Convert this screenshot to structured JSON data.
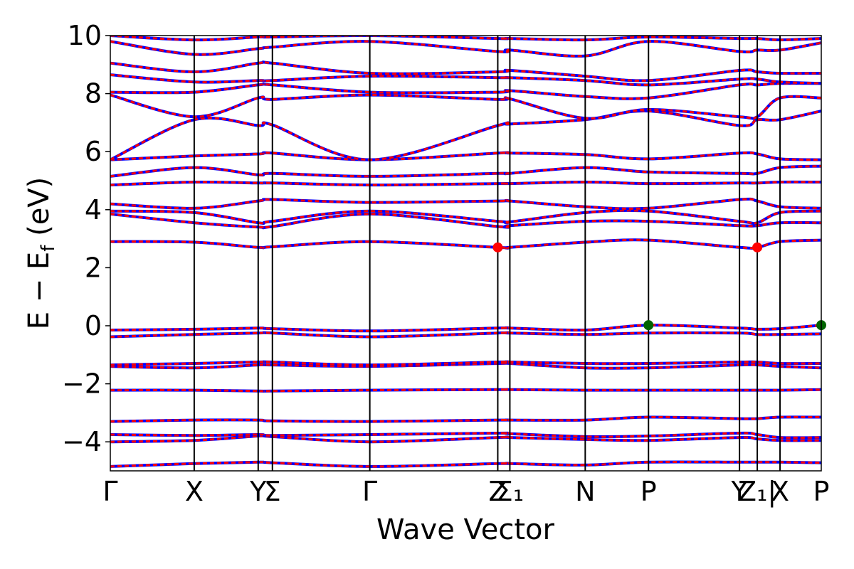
{
  "chart_data": {
    "type": "line",
    "title": "",
    "xlabel": "Wave Vector",
    "ylabel_parts": {
      "main": "E − E",
      "sub": "f",
      "unit": " (eV)"
    },
    "ylim": [
      -5,
      10
    ],
    "y_ticks": [
      {
        "value": -4,
        "label": "−4"
      },
      {
        "value": -2,
        "label": "−2"
      },
      {
        "value": 0,
        "label": "0"
      },
      {
        "value": 2,
        "label": "2"
      },
      {
        "value": 4,
        "label": "4"
      },
      {
        "value": 6,
        "label": "6"
      },
      {
        "value": 8,
        "label": "8"
      },
      {
        "value": 10,
        "label": "10"
      }
    ],
    "x_range": [
      0,
      1000
    ],
    "k_points": [
      {
        "x": 0,
        "label": "Γ"
      },
      {
        "x": 118,
        "label": "X"
      },
      {
        "x": 208,
        "label": "Y"
      },
      {
        "x": 228,
        "label": "Σ"
      },
      {
        "x": 365,
        "label": "Γ"
      },
      {
        "x": 545,
        "label": "Z"
      },
      {
        "x": 562,
        "label": "Σ₁"
      },
      {
        "x": 668,
        "label": "N"
      },
      {
        "x": 757,
        "label": "P"
      },
      {
        "x": 885,
        "label": "Y"
      },
      {
        "x": 910,
        "label": "Z₁|"
      },
      {
        "x": 942,
        "label": "X"
      },
      {
        "x": 1000,
        "label": "P"
      }
    ],
    "series_styles": {
      "spin_up_color": "#0000ff",
      "spin_down_color": "#ff0000"
    },
    "bands": [
      {
        "x": [
          0,
          118,
          208,
          228,
          365,
          545,
          562,
          668,
          757,
          885,
          910,
          942,
          1000
        ],
        "y": [
          -4.85,
          -4.75,
          -4.7,
          -4.72,
          -4.85,
          -4.75,
          -4.75,
          -4.8,
          -4.7,
          -4.7,
          -4.7,
          -4.7,
          -4.72
        ]
      },
      {
        "x": [
          0,
          118,
          208,
          228,
          365,
          545,
          562,
          668,
          757,
          885,
          910,
          942,
          1000
        ],
        "y": [
          -4.0,
          -3.95,
          -3.8,
          -3.82,
          -4.0,
          -3.85,
          -3.85,
          -3.92,
          -3.95,
          -3.85,
          -3.9,
          -3.95,
          -3.95
        ]
      },
      {
        "x": [
          0,
          118,
          208,
          228,
          365,
          545,
          562,
          668,
          757,
          885,
          910,
          942,
          1000
        ],
        "y": [
          -3.75,
          -3.78,
          -3.75,
          -3.78,
          -3.75,
          -3.7,
          -3.72,
          -3.82,
          -3.8,
          -3.7,
          -3.75,
          -3.85,
          -3.85
        ]
      },
      {
        "x": [
          0,
          118,
          208,
          228,
          365,
          545,
          562,
          668,
          757,
          885,
          910,
          942,
          1000
        ],
        "y": [
          -3.3,
          -3.25,
          -3.25,
          -3.28,
          -3.3,
          -3.25,
          -3.25,
          -3.25,
          -3.15,
          -3.2,
          -3.2,
          -3.15,
          -3.15
        ]
      },
      {
        "x": [
          0,
          118,
          208,
          228,
          365,
          545,
          562,
          668,
          757,
          885,
          910,
          942,
          1000
        ],
        "y": [
          -2.22,
          -2.22,
          -2.25,
          -2.25,
          -2.22,
          -2.2,
          -2.2,
          -2.22,
          -2.22,
          -2.22,
          -2.22,
          -2.22,
          -2.2
        ]
      },
      {
        "x": [
          0,
          118,
          208,
          228,
          365,
          545,
          562,
          668,
          757,
          885,
          910,
          942,
          1000
        ],
        "y": [
          -1.4,
          -1.45,
          -1.35,
          -1.35,
          -1.4,
          -1.3,
          -1.3,
          -1.45,
          -1.45,
          -1.35,
          -1.35,
          -1.4,
          -1.45
        ]
      },
      {
        "x": [
          0,
          118,
          208,
          228,
          365,
          545,
          562,
          668,
          757,
          885,
          910,
          942,
          1000
        ],
        "y": [
          -1.35,
          -1.3,
          -1.25,
          -1.25,
          -1.35,
          -1.25,
          -1.25,
          -1.3,
          -1.3,
          -1.25,
          -1.25,
          -1.3,
          -1.3
        ]
      },
      {
        "x": [
          0,
          118,
          208,
          228,
          365,
          545,
          562,
          668,
          757,
          885,
          910,
          942,
          1000
        ],
        "y": [
          -0.38,
          -0.3,
          -0.25,
          -0.25,
          -0.38,
          -0.25,
          -0.25,
          -0.3,
          -0.25,
          -0.25,
          -0.3,
          -0.3,
          -0.28
        ]
      },
      {
        "x": [
          0,
          118,
          208,
          228,
          365,
          545,
          562,
          668,
          757,
          885,
          910,
          942,
          1000
        ],
        "y": [
          -0.15,
          -0.12,
          -0.08,
          -0.1,
          -0.18,
          -0.08,
          -0.08,
          -0.15,
          0.02,
          -0.08,
          -0.12,
          -0.1,
          0.02
        ]
      },
      {
        "x": [
          0,
          118,
          208,
          228,
          365,
          545,
          562,
          668,
          757,
          885,
          910,
          942,
          1000
        ],
        "y": [
          2.9,
          2.88,
          2.7,
          2.72,
          2.9,
          2.7,
          2.7,
          2.88,
          2.95,
          2.7,
          2.7,
          2.9,
          2.95
        ]
      },
      {
        "x": [
          0,
          118,
          208,
          228,
          365,
          545,
          562,
          668,
          757,
          885,
          910,
          942,
          1000
        ],
        "y": [
          3.85,
          3.55,
          3.4,
          3.42,
          3.85,
          3.42,
          3.45,
          3.6,
          3.6,
          3.45,
          3.45,
          3.55,
          3.55
        ]
      },
      {
        "x": [
          0,
          118,
          208,
          228,
          365,
          545,
          562,
          668,
          757,
          885,
          910,
          942,
          1000
        ],
        "y": [
          3.95,
          3.9,
          3.55,
          3.6,
          3.95,
          3.6,
          3.58,
          3.9,
          3.95,
          3.6,
          3.55,
          3.9,
          3.95
        ]
      },
      {
        "x": [
          0,
          118,
          208,
          228,
          365,
          545,
          562,
          668,
          757,
          885,
          910,
          942,
          1000
        ],
        "y": [
          4.2,
          4.05,
          4.3,
          4.35,
          4.25,
          4.3,
          4.3,
          4.1,
          4.05,
          4.35,
          4.3,
          4.1,
          4.05
        ]
      },
      {
        "x": [
          0,
          118,
          208,
          228,
          365,
          545,
          562,
          668,
          757,
          885,
          910,
          942,
          1000
        ],
        "y": [
          4.85,
          4.95,
          4.92,
          4.92,
          4.85,
          4.9,
          4.9,
          4.95,
          4.9,
          4.92,
          4.92,
          4.95,
          4.95
        ]
      },
      {
        "x": [
          0,
          118,
          208,
          228,
          365,
          545,
          562,
          668,
          757,
          885,
          910,
          942,
          1000
        ],
        "y": [
          5.15,
          5.45,
          5.2,
          5.25,
          5.15,
          5.25,
          5.25,
          5.45,
          5.3,
          5.25,
          5.25,
          5.45,
          5.5
        ]
      },
      {
        "x": [
          0,
          118,
          208,
          228,
          365,
          545,
          562,
          668,
          757,
          885,
          910,
          942,
          1000
        ],
        "y": [
          5.72,
          5.85,
          5.92,
          5.95,
          5.72,
          5.95,
          5.95,
          5.9,
          5.75,
          5.95,
          5.92,
          5.75,
          5.72
        ]
      },
      {
        "x": [
          0,
          118,
          208,
          228,
          365,
          545,
          562,
          668,
          757,
          885,
          910,
          942,
          1000
        ],
        "y": [
          5.72,
          7.1,
          6.9,
          6.92,
          5.72,
          6.9,
          6.95,
          7.1,
          7.4,
          6.9,
          7.1,
          7.1,
          7.4
        ]
      },
      {
        "x": [
          0,
          118,
          208,
          228,
          365,
          545,
          562,
          668,
          757,
          885,
          910,
          942,
          1000
        ],
        "y": [
          7.95,
          7.2,
          7.85,
          7.8,
          7.95,
          7.8,
          7.82,
          7.15,
          7.45,
          7.2,
          7.2,
          7.85,
          7.85
        ]
      },
      {
        "x": [
          0,
          118,
          208,
          228,
          365,
          545,
          562,
          668,
          757,
          885,
          910,
          942,
          1000
        ],
        "y": [
          8.05,
          8.05,
          8.3,
          8.3,
          8.05,
          8.05,
          8.1,
          7.9,
          7.85,
          8.3,
          8.3,
          8.35,
          8.35
        ]
      },
      {
        "x": [
          0,
          118,
          208,
          228,
          365,
          545,
          562,
          668,
          757,
          885,
          910,
          942,
          1000
        ],
        "y": [
          8.65,
          8.4,
          8.45,
          8.45,
          8.6,
          8.55,
          8.55,
          8.45,
          8.3,
          8.5,
          8.5,
          8.4,
          8.35
        ]
      },
      {
        "x": [
          0,
          118,
          208,
          228,
          365,
          545,
          562,
          668,
          757,
          885,
          910,
          942,
          1000
        ],
        "y": [
          9.05,
          8.75,
          9.05,
          9.05,
          8.7,
          8.75,
          8.8,
          8.6,
          8.45,
          8.8,
          8.75,
          8.7,
          8.7
        ]
      },
      {
        "x": [
          0,
          118,
          208,
          228,
          365,
          545,
          562,
          668,
          757,
          885,
          910,
          942,
          1000
        ],
        "y": [
          9.8,
          9.35,
          9.55,
          9.6,
          9.8,
          9.45,
          9.5,
          9.3,
          9.8,
          9.45,
          9.5,
          9.5,
          9.75
        ]
      },
      {
        "x": [
          0,
          118,
          208,
          228,
          365,
          545,
          562,
          668,
          757,
          885,
          910,
          942,
          1000
        ],
        "y": [
          10.0,
          9.85,
          9.95,
          9.95,
          10.0,
          9.9,
          9.9,
          9.85,
          9.95,
          9.9,
          9.9,
          9.85,
          9.9
        ]
      }
    ],
    "markers": [
      {
        "x": 545,
        "y": 2.7,
        "color": "#ff0000"
      },
      {
        "x": 910,
        "y": 2.7,
        "color": "#ff0000"
      },
      {
        "x": 757,
        "y": 0.02,
        "color": "#006400"
      },
      {
        "x": 1000,
        "y": 0.02,
        "color": "#006400"
      }
    ]
  }
}
